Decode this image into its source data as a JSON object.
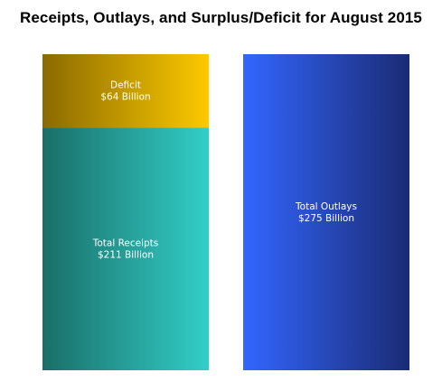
{
  "chart_data": {
    "type": "bar",
    "title": "Receipts, Outlays, and Surplus/Deficit for August 2015",
    "stacked": true,
    "grid": false,
    "legend": "none",
    "unit": "Billion",
    "bars": [
      {
        "segments": [
          {
            "label": "Total Receipts",
            "value_text": "$211 Billion",
            "value": 211,
            "gradient": [
              "#1a6e68",
              "#33cec8"
            ]
          },
          {
            "label": "Deficit",
            "value_text": "$64 Billion",
            "value": 64,
            "gradient": [
              "#8a6a00",
              "#fdc900"
            ]
          }
        ]
      },
      {
        "segments": [
          {
            "label": "Total Outlays",
            "value_text": "$275 Billion",
            "value": 275,
            "gradient": [
              "#3366ff",
              "#1b2b75"
            ]
          }
        ]
      }
    ]
  }
}
